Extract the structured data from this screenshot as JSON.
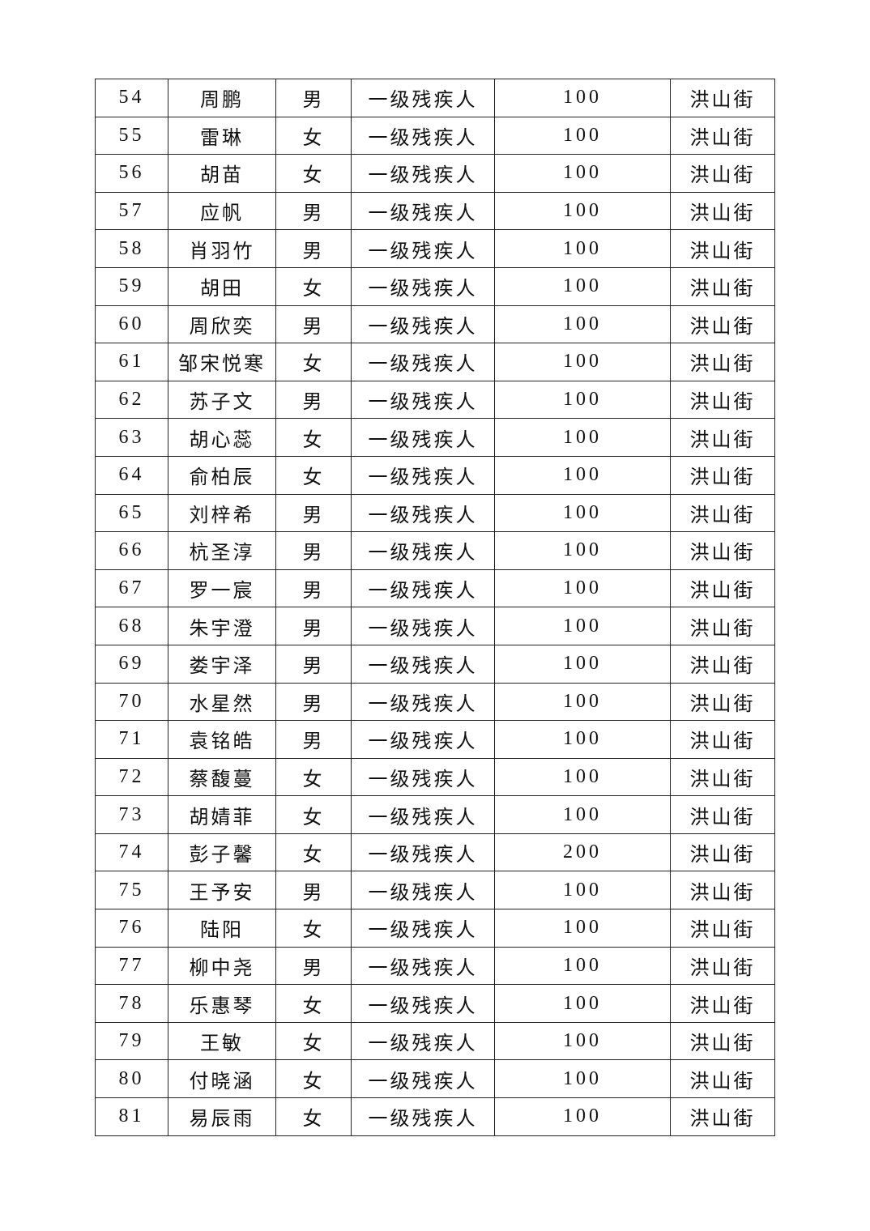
{
  "table": {
    "rows": [
      [
        "54",
        "周鹏",
        "男",
        "一级残疾人",
        "100",
        "洪山街"
      ],
      [
        "55",
        "雷琳",
        "女",
        "一级残疾人",
        "100",
        "洪山街"
      ],
      [
        "56",
        "胡苗",
        "女",
        "一级残疾人",
        "100",
        "洪山街"
      ],
      [
        "57",
        "应帆",
        "男",
        "一级残疾人",
        "100",
        "洪山街"
      ],
      [
        "58",
        "肖羽竹",
        "男",
        "一级残疾人",
        "100",
        "洪山街"
      ],
      [
        "59",
        "胡田",
        "女",
        "一级残疾人",
        "100",
        "洪山街"
      ],
      [
        "60",
        "周欣奕",
        "男",
        "一级残疾人",
        "100",
        "洪山街"
      ],
      [
        "61",
        "邹宋悦寒",
        "女",
        "一级残疾人",
        "100",
        "洪山街"
      ],
      [
        "62",
        "苏子文",
        "男",
        "一级残疾人",
        "100",
        "洪山街"
      ],
      [
        "63",
        "胡心蕊",
        "女",
        "一级残疾人",
        "100",
        "洪山街"
      ],
      [
        "64",
        "俞柏辰",
        "女",
        "一级残疾人",
        "100",
        "洪山街"
      ],
      [
        "65",
        "刘梓希",
        "男",
        "一级残疾人",
        "100",
        "洪山街"
      ],
      [
        "66",
        "杭圣淳",
        "男",
        "一级残疾人",
        "100",
        "洪山街"
      ],
      [
        "67",
        "罗一宸",
        "男",
        "一级残疾人",
        "100",
        "洪山街"
      ],
      [
        "68",
        "朱宇澄",
        "男",
        "一级残疾人",
        "100",
        "洪山街"
      ],
      [
        "69",
        "娄宇泽",
        "男",
        "一级残疾人",
        "100",
        "洪山街"
      ],
      [
        "70",
        "水星然",
        "男",
        "一级残疾人",
        "100",
        "洪山街"
      ],
      [
        "71",
        "袁铭皓",
        "男",
        "一级残疾人",
        "100",
        "洪山街"
      ],
      [
        "72",
        "蔡馥蔓",
        "女",
        "一级残疾人",
        "100",
        "洪山街"
      ],
      [
        "73",
        "胡婧菲",
        "女",
        "一级残疾人",
        "100",
        "洪山街"
      ],
      [
        "74",
        "彭子馨",
        "女",
        "一级残疾人",
        "200",
        "洪山街"
      ],
      [
        "75",
        "王予安",
        "男",
        "一级残疾人",
        "100",
        "洪山街"
      ],
      [
        "76",
        "陆阳",
        "女",
        "一级残疾人",
        "100",
        "洪山街"
      ],
      [
        "77",
        "柳中尧",
        "男",
        "一级残疾人",
        "100",
        "洪山街"
      ],
      [
        "78",
        "乐惠琴",
        "女",
        "一级残疾人",
        "100",
        "洪山街"
      ],
      [
        "79",
        "王敏",
        "女",
        "一级残疾人",
        "100",
        "洪山街"
      ],
      [
        "80",
        "付晓涵",
        "女",
        "一级残疾人",
        "100",
        "洪山街"
      ],
      [
        "81",
        "易辰雨",
        "女",
        "一级残疾人",
        "100",
        "洪山街"
      ]
    ]
  }
}
